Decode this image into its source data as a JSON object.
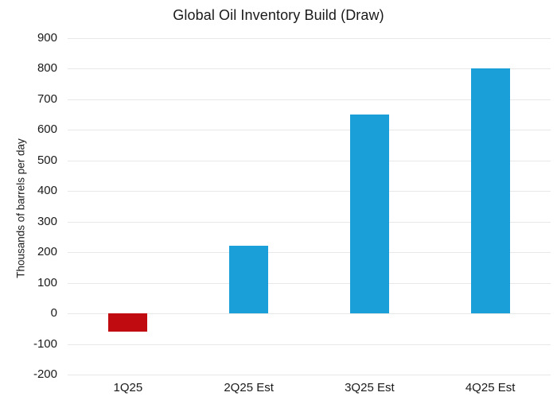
{
  "chart_data": {
    "type": "bar",
    "title": "Global Oil Inventory Build (Draw)",
    "xlabel": "",
    "ylabel": "Thousands of barrels per day",
    "categories": [
      "1Q25",
      "2Q25 Est",
      "3Q25 Est",
      "4Q25 Est"
    ],
    "values": [
      -60,
      220,
      650,
      800
    ],
    "bar_colors": [
      "#c00c11",
      "#1a9fd8",
      "#1a9fd8",
      "#1a9fd8"
    ],
    "ylim": [
      -200,
      900
    ],
    "yticks": [
      900,
      800,
      700,
      600,
      500,
      400,
      300,
      200,
      100,
      0,
      -100,
      -200
    ],
    "grid": "horizontal",
    "legend_position": "none",
    "colors": {
      "negative_bar": "#c00c11",
      "positive_bar": "#1a9fd8",
      "gridline": "#e8e8e8",
      "text": "#1a1a1a",
      "background": "#ffffff"
    }
  }
}
